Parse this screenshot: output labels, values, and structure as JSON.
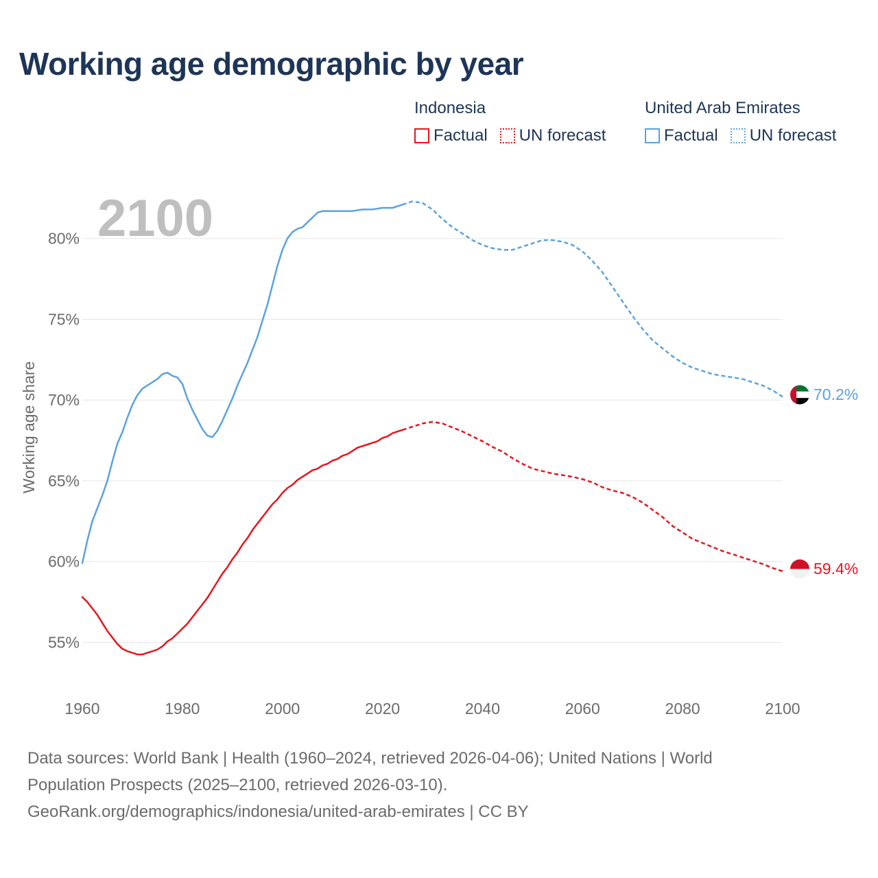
{
  "title": "Working age demographic by year",
  "year_indicator": "2100",
  "legend": {
    "groups": [
      {
        "name": "Indonesia",
        "color": "#e8141c",
        "items": [
          {
            "label": "Factual",
            "style": "solid"
          },
          {
            "label": "UN forecast",
            "style": "dotted"
          }
        ]
      },
      {
        "name": "United Arab Emirates",
        "color": "#5aa2e0",
        "items": [
          {
            "label": "Factual",
            "style": "solid"
          },
          {
            "label": "UN forecast",
            "style": "dotted"
          }
        ]
      }
    ]
  },
  "end_labels": {
    "indonesia": "59.4%",
    "uae": "70.2%"
  },
  "flags": {
    "indonesia": "indonesia-flag-icon",
    "uae": "uae-flag-icon"
  },
  "source": {
    "line1": "Data sources: World Bank | Health (1960–2024, retrieved 2026-04-06); United Nations | World Population Prospects (2025–2100, retrieved 2026-03-10).",
    "line2": "GeoRank.org/demographics/indonesia/united-arab-emirates | CC BY"
  },
  "chart_data": {
    "type": "line",
    "title": "Working age demographic by year",
    "xlabel": "",
    "ylabel": "Working age share",
    "xlim": [
      1960,
      2100
    ],
    "ylim": [
      52.3,
      85.0
    ],
    "x_ticks": [
      1960,
      1980,
      2000,
      2020,
      2040,
      2060,
      2080,
      2100
    ],
    "y_ticks": [
      55,
      60,
      65,
      70,
      75,
      80
    ],
    "y_tick_labels": [
      "55%",
      "60%",
      "65%",
      "70%",
      "75%",
      "80%"
    ],
    "forecast_start": 2025,
    "grid": true,
    "series": [
      {
        "name": "United Arab Emirates",
        "color": "#5aa2e0",
        "points": [
          [
            1960,
            59.9
          ],
          [
            1961,
            61.3
          ],
          [
            1962,
            62.5
          ],
          [
            1963,
            63.3
          ],
          [
            1964,
            64.1
          ],
          [
            1965,
            65.0
          ],
          [
            1966,
            66.2
          ],
          [
            1967,
            67.3
          ],
          [
            1968,
            68.0
          ],
          [
            1969,
            68.9
          ],
          [
            1970,
            69.7
          ],
          [
            1971,
            70.3
          ],
          [
            1972,
            70.7
          ],
          [
            1973,
            70.9
          ],
          [
            1974,
            71.1
          ],
          [
            1975,
            71.3
          ],
          [
            1976,
            71.6
          ],
          [
            1977,
            71.7
          ],
          [
            1978,
            71.5
          ],
          [
            1979,
            71.4
          ],
          [
            1980,
            71.0
          ],
          [
            1981,
            70.1
          ],
          [
            1982,
            69.4
          ],
          [
            1983,
            68.8
          ],
          [
            1984,
            68.2
          ],
          [
            1985,
            67.8
          ],
          [
            1986,
            67.7
          ],
          [
            1987,
            68.1
          ],
          [
            1988,
            68.7
          ],
          [
            1989,
            69.4
          ],
          [
            1990,
            70.1
          ],
          [
            1991,
            70.9
          ],
          [
            1992,
            71.6
          ],
          [
            1993,
            72.3
          ],
          [
            1994,
            73.1
          ],
          [
            1995,
            73.9
          ],
          [
            1996,
            74.9
          ],
          [
            1997,
            75.9
          ],
          [
            1998,
            77.1
          ],
          [
            1999,
            78.3
          ],
          [
            2000,
            79.3
          ],
          [
            2001,
            80.0
          ],
          [
            2002,
            80.4
          ],
          [
            2003,
            80.6
          ],
          [
            2004,
            80.7
          ],
          [
            2005,
            81.0
          ],
          [
            2006,
            81.3
          ],
          [
            2007,
            81.6
          ],
          [
            2008,
            81.7
          ],
          [
            2010,
            81.7
          ],
          [
            2012,
            81.7
          ],
          [
            2014,
            81.7
          ],
          [
            2016,
            81.8
          ],
          [
            2018,
            81.8
          ],
          [
            2020,
            81.9
          ],
          [
            2022,
            81.9
          ],
          [
            2024,
            82.1
          ],
          [
            2026,
            82.3
          ],
          [
            2028,
            82.2
          ],
          [
            2030,
            81.8
          ],
          [
            2032,
            81.2
          ],
          [
            2034,
            80.7
          ],
          [
            2036,
            80.3
          ],
          [
            2038,
            79.9
          ],
          [
            2040,
            79.6
          ],
          [
            2042,
            79.4
          ],
          [
            2044,
            79.3
          ],
          [
            2046,
            79.3
          ],
          [
            2048,
            79.5
          ],
          [
            2050,
            79.7
          ],
          [
            2052,
            79.9
          ],
          [
            2054,
            79.9
          ],
          [
            2056,
            79.8
          ],
          [
            2058,
            79.6
          ],
          [
            2060,
            79.2
          ],
          [
            2062,
            78.6
          ],
          [
            2064,
            77.9
          ],
          [
            2066,
            77.0
          ],
          [
            2068,
            76.1
          ],
          [
            2070,
            75.2
          ],
          [
            2072,
            74.4
          ],
          [
            2074,
            73.7
          ],
          [
            2076,
            73.2
          ],
          [
            2078,
            72.7
          ],
          [
            2080,
            72.3
          ],
          [
            2082,
            72.0
          ],
          [
            2084,
            71.8
          ],
          [
            2086,
            71.6
          ],
          [
            2088,
            71.5
          ],
          [
            2090,
            71.4
          ],
          [
            2092,
            71.3
          ],
          [
            2094,
            71.1
          ],
          [
            2096,
            70.9
          ],
          [
            2098,
            70.6
          ],
          [
            2100,
            70.2
          ]
        ]
      },
      {
        "name": "Indonesia",
        "color": "#e8141c",
        "points": [
          [
            1960,
            57.8
          ],
          [
            1961,
            57.5
          ],
          [
            1962,
            57.1
          ],
          [
            1963,
            56.7
          ],
          [
            1964,
            56.2
          ],
          [
            1965,
            55.7
          ],
          [
            1966,
            55.3
          ],
          [
            1967,
            54.9
          ],
          [
            1968,
            54.6
          ],
          [
            1969,
            54.45
          ],
          [
            1970,
            54.35
          ],
          [
            1971,
            54.25
          ],
          [
            1972,
            54.25
          ],
          [
            1973,
            54.35
          ],
          [
            1974,
            54.45
          ],
          [
            1975,
            54.55
          ],
          [
            1976,
            54.75
          ],
          [
            1977,
            55.05
          ],
          [
            1978,
            55.25
          ],
          [
            1979,
            55.55
          ],
          [
            1980,
            55.85
          ],
          [
            1981,
            56.15
          ],
          [
            1982,
            56.55
          ],
          [
            1983,
            56.95
          ],
          [
            1984,
            57.35
          ],
          [
            1985,
            57.75
          ],
          [
            1986,
            58.25
          ],
          [
            1987,
            58.75
          ],
          [
            1988,
            59.25
          ],
          [
            1989,
            59.65
          ],
          [
            1990,
            60.15
          ],
          [
            1991,
            60.55
          ],
          [
            1992,
            61.05
          ],
          [
            1993,
            61.45
          ],
          [
            1994,
            61.95
          ],
          [
            1995,
            62.35
          ],
          [
            1996,
            62.75
          ],
          [
            1997,
            63.15
          ],
          [
            1998,
            63.55
          ],
          [
            1999,
            63.85
          ],
          [
            2000,
            64.25
          ],
          [
            2001,
            64.55
          ],
          [
            2002,
            64.75
          ],
          [
            2003,
            65.05
          ],
          [
            2004,
            65.25
          ],
          [
            2005,
            65.45
          ],
          [
            2006,
            65.65
          ],
          [
            2007,
            65.75
          ],
          [
            2008,
            65.95
          ],
          [
            2009,
            66.05
          ],
          [
            2010,
            66.25
          ],
          [
            2011,
            66.35
          ],
          [
            2012,
            66.55
          ],
          [
            2013,
            66.65
          ],
          [
            2014,
            66.85
          ],
          [
            2015,
            67.05
          ],
          [
            2016,
            67.15
          ],
          [
            2017,
            67.25
          ],
          [
            2018,
            67.35
          ],
          [
            2019,
            67.45
          ],
          [
            2020,
            67.65
          ],
          [
            2021,
            67.75
          ],
          [
            2022,
            67.95
          ],
          [
            2023,
            68.05
          ],
          [
            2024,
            68.15
          ],
          [
            2026,
            68.35
          ],
          [
            2028,
            68.55
          ],
          [
            2030,
            68.65
          ],
          [
            2032,
            68.55
          ],
          [
            2034,
            68.3
          ],
          [
            2036,
            68.05
          ],
          [
            2038,
            67.75
          ],
          [
            2040,
            67.45
          ],
          [
            2042,
            67.1
          ],
          [
            2044,
            66.8
          ],
          [
            2046,
            66.4
          ],
          [
            2048,
            66.05
          ],
          [
            2050,
            65.75
          ],
          [
            2052,
            65.6
          ],
          [
            2054,
            65.45
          ],
          [
            2056,
            65.35
          ],
          [
            2058,
            65.25
          ],
          [
            2060,
            65.1
          ],
          [
            2062,
            64.9
          ],
          [
            2064,
            64.6
          ],
          [
            2066,
            64.4
          ],
          [
            2068,
            64.25
          ],
          [
            2070,
            64.0
          ],
          [
            2072,
            63.65
          ],
          [
            2074,
            63.2
          ],
          [
            2076,
            62.75
          ],
          [
            2078,
            62.2
          ],
          [
            2080,
            61.8
          ],
          [
            2082,
            61.4
          ],
          [
            2084,
            61.15
          ],
          [
            2086,
            60.9
          ],
          [
            2088,
            60.65
          ],
          [
            2090,
            60.45
          ],
          [
            2092,
            60.25
          ],
          [
            2094,
            60.05
          ],
          [
            2096,
            59.85
          ],
          [
            2098,
            59.6
          ],
          [
            2100,
            59.4
          ]
        ]
      }
    ]
  }
}
